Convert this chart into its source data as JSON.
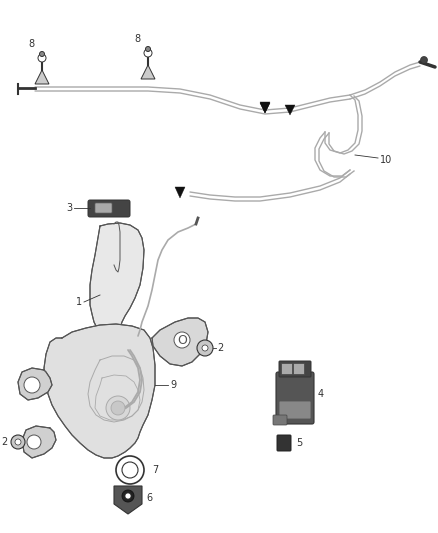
{
  "background": "#ffffff",
  "line_color": "#aaaaaa",
  "dark_color": "#333333",
  "body_fill": "#eeeeee",
  "body_edge": "#555555",
  "figsize": [
    4.38,
    5.33
  ],
  "dpi": 100
}
